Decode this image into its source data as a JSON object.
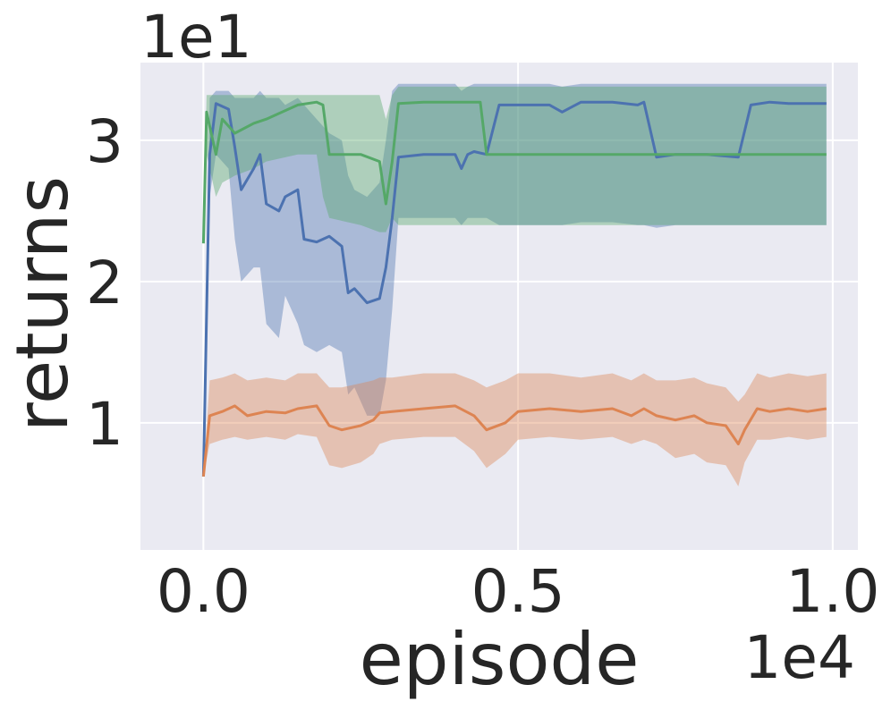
{
  "chart_data": {
    "type": "line",
    "xlabel": "episode",
    "ylabel": "returns",
    "x_exponent_label": "1e4",
    "y_exponent_label": "1e1",
    "xlim": [
      -0.1,
      1.04
    ],
    "ylim": [
      0.1,
      3.55
    ],
    "x_ticks": [
      0.0,
      0.5,
      1.0
    ],
    "x_tick_labels": [
      "0.0",
      "0.5",
      "1.0"
    ],
    "y_ticks": [
      1,
      2,
      3
    ],
    "y_tick_labels": [
      "1",
      "2",
      "3"
    ],
    "grid": true,
    "series": [
      {
        "color": "#4c72b0",
        "x": [
          0.0,
          0.01,
          0.02,
          0.04,
          0.05,
          0.06,
          0.08,
          0.09,
          0.1,
          0.12,
          0.13,
          0.15,
          0.16,
          0.18,
          0.2,
          0.22,
          0.23,
          0.24,
          0.26,
          0.28,
          0.29,
          0.3,
          0.31,
          0.35,
          0.4,
          0.41,
          0.42,
          0.43,
          0.45,
          0.47,
          0.55,
          0.57,
          0.6,
          0.65,
          0.69,
          0.7,
          0.72,
          0.75,
          0.8,
          0.85,
          0.87,
          0.9,
          0.93,
          0.99
        ],
        "y": [
          0.62,
          2.9,
          3.26,
          3.22,
          2.95,
          2.65,
          2.8,
          2.9,
          2.55,
          2.5,
          2.6,
          2.65,
          2.3,
          2.28,
          2.32,
          2.25,
          1.92,
          1.95,
          1.85,
          1.88,
          2.1,
          2.45,
          2.88,
          2.9,
          2.9,
          2.8,
          2.9,
          2.92,
          2.9,
          3.25,
          3.25,
          3.2,
          3.27,
          3.27,
          3.25,
          3.27,
          2.88,
          2.9,
          2.9,
          2.88,
          3.25,
          3.27,
          3.26,
          3.26
        ],
        "lower": [
          0.62,
          2.6,
          2.9,
          2.8,
          2.3,
          2.0,
          2.1,
          2.1,
          1.7,
          1.6,
          1.9,
          1.7,
          1.55,
          1.5,
          1.55,
          1.5,
          1.2,
          1.25,
          1.05,
          1.05,
          1.3,
          1.8,
          2.45,
          2.45,
          2.45,
          2.4,
          2.45,
          2.45,
          2.45,
          2.4,
          2.4,
          2.4,
          2.42,
          2.42,
          2.4,
          2.4,
          2.38,
          2.4,
          2.4,
          2.4,
          2.4,
          2.4,
          2.4,
          2.4
        ],
        "upper": [
          0.62,
          3.3,
          3.35,
          3.35,
          3.3,
          3.3,
          3.3,
          3.35,
          3.3,
          3.3,
          3.25,
          3.3,
          3.25,
          3.15,
          3.05,
          3.0,
          2.75,
          2.65,
          2.6,
          2.7,
          3.0,
          3.35,
          3.4,
          3.4,
          3.4,
          3.35,
          3.38,
          3.4,
          3.4,
          3.4,
          3.4,
          3.38,
          3.4,
          3.4,
          3.4,
          3.4,
          3.4,
          3.4,
          3.4,
          3.4,
          3.4,
          3.4,
          3.4,
          3.4
        ]
      },
      {
        "color": "#dd8452",
        "x": [
          0.0,
          0.01,
          0.03,
          0.05,
          0.07,
          0.1,
          0.13,
          0.15,
          0.18,
          0.19,
          0.2,
          0.22,
          0.25,
          0.27,
          0.28,
          0.3,
          0.35,
          0.4,
          0.43,
          0.45,
          0.48,
          0.5,
          0.55,
          0.6,
          0.65,
          0.68,
          0.7,
          0.72,
          0.75,
          0.78,
          0.8,
          0.83,
          0.85,
          0.86,
          0.88,
          0.9,
          0.93,
          0.96,
          0.99
        ],
        "y": [
          0.62,
          1.05,
          1.08,
          1.12,
          1.05,
          1.08,
          1.07,
          1.1,
          1.12,
          1.05,
          0.98,
          0.95,
          0.98,
          1.02,
          1.07,
          1.08,
          1.1,
          1.12,
          1.05,
          0.95,
          1.0,
          1.08,
          1.1,
          1.08,
          1.1,
          1.05,
          1.1,
          1.05,
          1.02,
          1.05,
          1.0,
          0.98,
          0.85,
          0.95,
          1.1,
          1.08,
          1.1,
          1.08,
          1.1
        ],
        "lower": [
          0.62,
          0.85,
          0.88,
          0.9,
          0.88,
          0.9,
          0.88,
          0.92,
          0.9,
          0.8,
          0.7,
          0.68,
          0.72,
          0.78,
          0.85,
          0.88,
          0.9,
          0.9,
          0.8,
          0.68,
          0.78,
          0.88,
          0.9,
          0.88,
          0.9,
          0.85,
          0.88,
          0.85,
          0.75,
          0.78,
          0.72,
          0.7,
          0.55,
          0.72,
          0.88,
          0.88,
          0.9,
          0.88,
          0.9
        ],
        "upper": [
          0.62,
          1.3,
          1.32,
          1.35,
          1.3,
          1.32,
          1.3,
          1.35,
          1.35,
          1.3,
          1.25,
          1.25,
          1.28,
          1.3,
          1.32,
          1.32,
          1.35,
          1.35,
          1.3,
          1.25,
          1.3,
          1.35,
          1.35,
          1.32,
          1.35,
          1.3,
          1.35,
          1.3,
          1.3,
          1.32,
          1.28,
          1.25,
          1.15,
          1.2,
          1.35,
          1.32,
          1.35,
          1.33,
          1.35
        ]
      },
      {
        "color": "#55a868",
        "x": [
          0.0,
          0.005,
          0.02,
          0.03,
          0.05,
          0.08,
          0.1,
          0.15,
          0.18,
          0.19,
          0.2,
          0.25,
          0.28,
          0.29,
          0.3,
          0.31,
          0.35,
          0.4,
          0.44,
          0.45,
          0.5,
          0.6,
          0.7,
          0.8,
          0.9,
          0.99
        ],
        "y": [
          2.27,
          3.2,
          2.9,
          3.15,
          3.05,
          3.12,
          3.15,
          3.25,
          3.27,
          3.25,
          2.9,
          2.9,
          2.85,
          2.55,
          2.85,
          3.26,
          3.27,
          3.27,
          3.27,
          2.9,
          2.9,
          2.9,
          2.9,
          2.9,
          2.9,
          2.9
        ],
        "lower": [
          2.27,
          2.9,
          2.6,
          2.7,
          2.75,
          2.8,
          2.85,
          2.9,
          2.9,
          2.6,
          2.45,
          2.4,
          2.35,
          2.35,
          2.45,
          2.4,
          2.4,
          2.4,
          2.4,
          2.4,
          2.4,
          2.4,
          2.4,
          2.4,
          2.4,
          2.4
        ],
        "upper": [
          2.27,
          3.32,
          3.32,
          3.32,
          3.32,
          3.32,
          3.32,
          3.32,
          3.32,
          3.32,
          3.32,
          3.32,
          3.32,
          3.15,
          3.32,
          3.38,
          3.38,
          3.38,
          3.38,
          3.38,
          3.38,
          3.38,
          3.38,
          3.38,
          3.38,
          3.38
        ]
      }
    ]
  }
}
